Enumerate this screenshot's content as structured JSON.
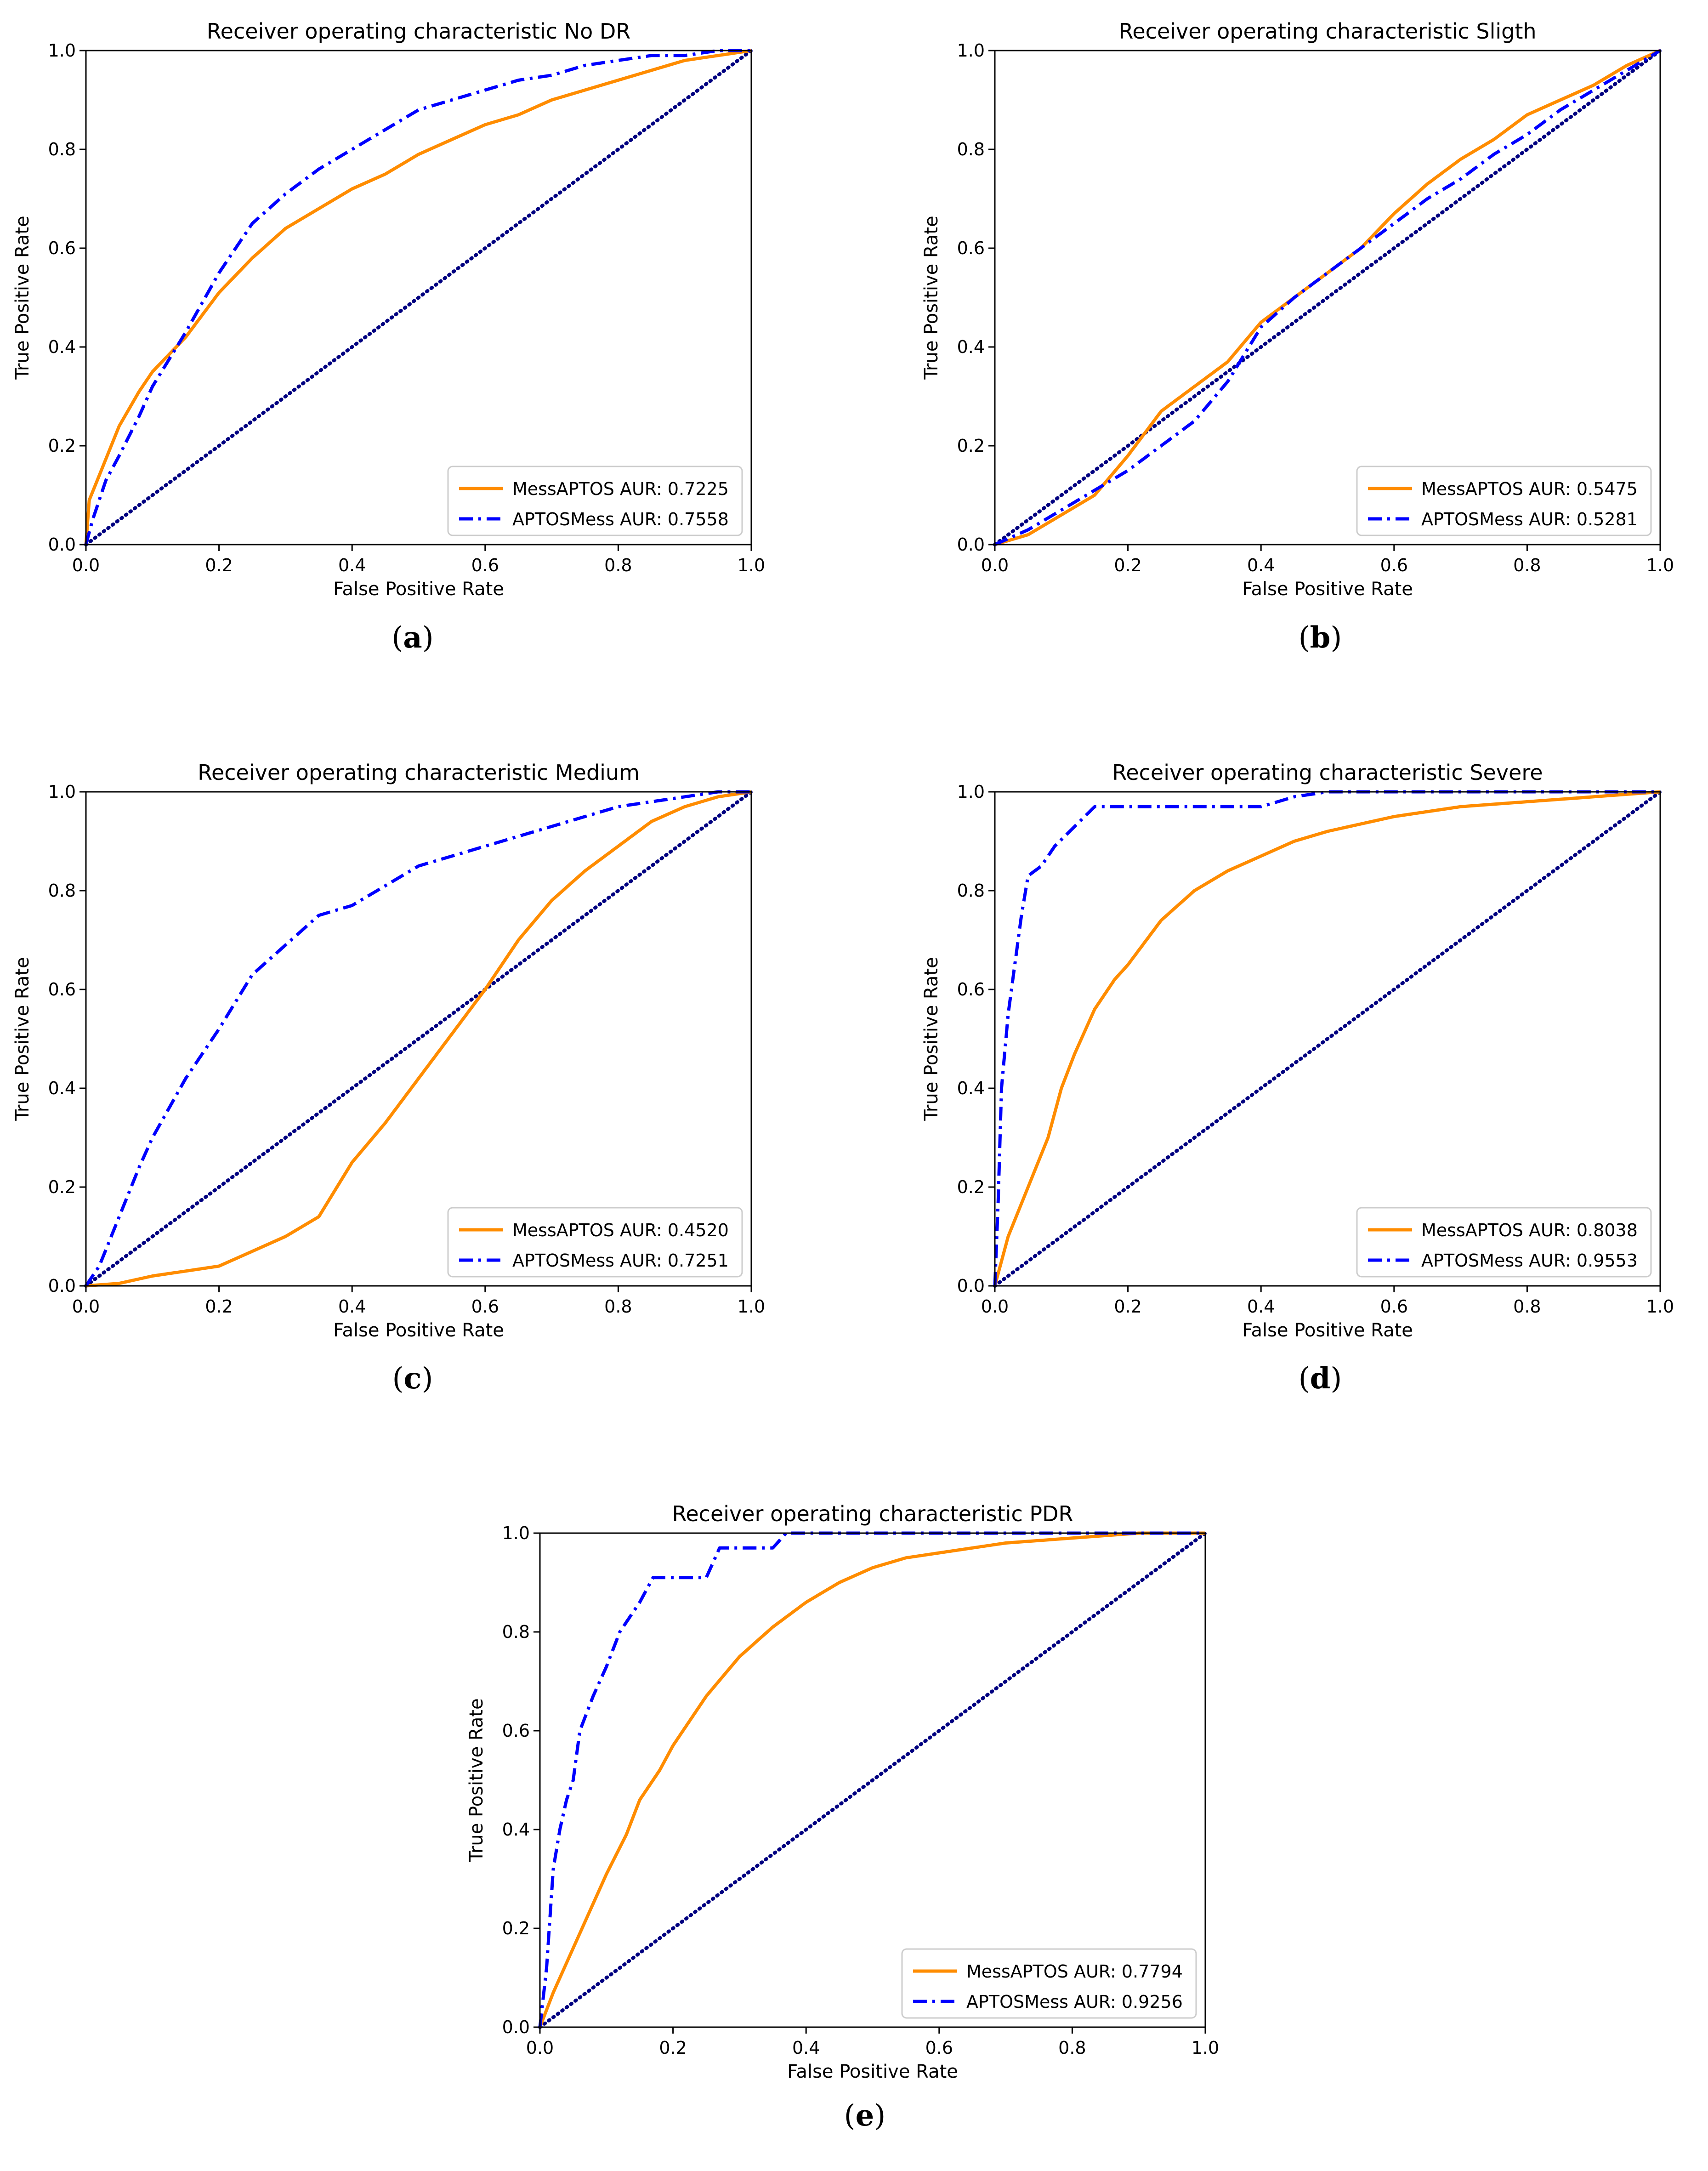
{
  "figure": {
    "captions": [
      "(a)",
      "(b)",
      "(c)",
      "(d)",
      "(e)"
    ],
    "caption_letters": [
      "a",
      "b",
      "c",
      "d",
      "e"
    ]
  },
  "style": {
    "mess_color": "#ff8c00",
    "aptos_color": "#0000ff",
    "diag_color": "#000080",
    "axis_color": "#000000"
  },
  "chart_data": [
    {
      "type": "line",
      "title": "Receiver operating characteristic No DR",
      "xlabel": "False Positive Rate",
      "ylabel": "True Positive Rate",
      "xlim": [
        0,
        1
      ],
      "ylim": [
        0,
        1
      ],
      "xticks": [
        "0.0",
        "0.2",
        "0.4",
        "0.6",
        "0.8",
        "1.0"
      ],
      "yticks": [
        "0.0",
        "0.2",
        "0.4",
        "0.6",
        "0.8",
        "1.0"
      ],
      "legend": "lower-right",
      "series": [
        {
          "name": "MessAPTOS AUR: 0.7225",
          "style": "solid",
          "x": [
            0,
            0.005,
            0.02,
            0.05,
            0.08,
            0.1,
            0.15,
            0.2,
            0.25,
            0.3,
            0.35,
            0.4,
            0.45,
            0.5,
            0.55,
            0.6,
            0.65,
            0.7,
            0.75,
            0.8,
            0.85,
            0.9,
            0.95,
            1.0
          ],
          "y": [
            0,
            0.09,
            0.14,
            0.24,
            0.31,
            0.35,
            0.42,
            0.51,
            0.58,
            0.64,
            0.68,
            0.72,
            0.75,
            0.79,
            0.82,
            0.85,
            0.87,
            0.9,
            0.92,
            0.94,
            0.96,
            0.98,
            0.99,
            1.0
          ]
        },
        {
          "name": "APTOSMess AUR: 0.7558",
          "style": "dashdot",
          "x": [
            0,
            0.01,
            0.03,
            0.05,
            0.08,
            0.1,
            0.15,
            0.2,
            0.25,
            0.3,
            0.35,
            0.4,
            0.45,
            0.5,
            0.55,
            0.6,
            0.65,
            0.7,
            0.75,
            0.8,
            0.85,
            0.9,
            0.95,
            1.0
          ],
          "y": [
            0,
            0.05,
            0.13,
            0.18,
            0.26,
            0.32,
            0.43,
            0.55,
            0.65,
            0.71,
            0.76,
            0.8,
            0.84,
            0.88,
            0.9,
            0.92,
            0.94,
            0.95,
            0.97,
            0.98,
            0.99,
            0.99,
            1.0,
            1.0
          ]
        }
      ]
    },
    {
      "type": "line",
      "title": "Receiver operating characteristic Sligth",
      "xlabel": "False Positive Rate",
      "ylabel": "True Positive Rate",
      "xlim": [
        0,
        1
      ],
      "ylim": [
        0,
        1
      ],
      "xticks": [
        "0.0",
        "0.2",
        "0.4",
        "0.6",
        "0.8",
        "1.0"
      ],
      "yticks": [
        "0.0",
        "0.2",
        "0.4",
        "0.6",
        "0.8",
        "1.0"
      ],
      "legend": "lower-right",
      "series": [
        {
          "name": "MessAPTOS AUR: 0.5475",
          "style": "solid",
          "x": [
            0,
            0.05,
            0.1,
            0.15,
            0.2,
            0.25,
            0.3,
            0.35,
            0.4,
            0.45,
            0.5,
            0.55,
            0.6,
            0.65,
            0.7,
            0.75,
            0.8,
            0.85,
            0.9,
            0.95,
            1.0
          ],
          "y": [
            0,
            0.02,
            0.06,
            0.1,
            0.18,
            0.27,
            0.32,
            0.37,
            0.45,
            0.5,
            0.55,
            0.6,
            0.67,
            0.73,
            0.78,
            0.82,
            0.87,
            0.9,
            0.93,
            0.97,
            1.0
          ]
        },
        {
          "name": "APTOSMess AUR: 0.5281",
          "style": "dashdot",
          "x": [
            0,
            0.05,
            0.1,
            0.15,
            0.2,
            0.25,
            0.3,
            0.35,
            0.4,
            0.45,
            0.5,
            0.55,
            0.6,
            0.65,
            0.7,
            0.75,
            0.8,
            0.85,
            0.9,
            0.95,
            1.0
          ],
          "y": [
            0,
            0.03,
            0.07,
            0.11,
            0.15,
            0.2,
            0.25,
            0.33,
            0.44,
            0.5,
            0.55,
            0.6,
            0.65,
            0.7,
            0.74,
            0.79,
            0.83,
            0.88,
            0.92,
            0.96,
            1.0
          ]
        }
      ]
    },
    {
      "type": "line",
      "title": "Receiver operating characteristic Medium",
      "xlabel": "False Positive Rate",
      "ylabel": "True Positive Rate",
      "xlim": [
        0,
        1
      ],
      "ylim": [
        0,
        1
      ],
      "xticks": [
        "0.0",
        "0.2",
        "0.4",
        "0.6",
        "0.8",
        "1.0"
      ],
      "yticks": [
        "0.0",
        "0.2",
        "0.4",
        "0.6",
        "0.8",
        "1.0"
      ],
      "legend": "lower-right",
      "series": [
        {
          "name": "MessAPTOS AUR: 0.4520",
          "style": "solid",
          "x": [
            0,
            0.05,
            0.1,
            0.15,
            0.2,
            0.25,
            0.3,
            0.35,
            0.4,
            0.45,
            0.5,
            0.55,
            0.6,
            0.65,
            0.7,
            0.75,
            0.8,
            0.85,
            0.9,
            0.95,
            1.0
          ],
          "y": [
            0,
            0.005,
            0.02,
            0.03,
            0.04,
            0.07,
            0.1,
            0.14,
            0.25,
            0.33,
            0.42,
            0.51,
            0.6,
            0.7,
            0.78,
            0.84,
            0.89,
            0.94,
            0.97,
            0.99,
            1.0
          ]
        },
        {
          "name": "APTOSMess AUR: 0.7251",
          "style": "dashdot",
          "x": [
            0,
            0.02,
            0.05,
            0.08,
            0.1,
            0.15,
            0.2,
            0.25,
            0.3,
            0.35,
            0.4,
            0.45,
            0.5,
            0.55,
            0.6,
            0.65,
            0.7,
            0.75,
            0.8,
            0.85,
            0.9,
            0.95,
            1.0
          ],
          "y": [
            0,
            0.04,
            0.14,
            0.24,
            0.3,
            0.42,
            0.52,
            0.63,
            0.69,
            0.75,
            0.77,
            0.81,
            0.85,
            0.87,
            0.89,
            0.91,
            0.93,
            0.95,
            0.97,
            0.98,
            0.99,
            1.0,
            1.0
          ]
        }
      ]
    },
    {
      "type": "line",
      "title": "Receiver operating characteristic Severe",
      "xlabel": "False Positive Rate",
      "ylabel": "True Positive Rate",
      "xlim": [
        0,
        1
      ],
      "ylim": [
        0,
        1
      ],
      "xticks": [
        "0.0",
        "0.2",
        "0.4",
        "0.6",
        "0.8",
        "1.0"
      ],
      "yticks": [
        "0.0",
        "0.2",
        "0.4",
        "0.6",
        "0.8",
        "1.0"
      ],
      "legend": "lower-right",
      "series": [
        {
          "name": "MessAPTOS AUR: 0.8038",
          "style": "solid",
          "x": [
            0,
            0.02,
            0.05,
            0.08,
            0.1,
            0.12,
            0.15,
            0.18,
            0.2,
            0.25,
            0.3,
            0.35,
            0.4,
            0.45,
            0.5,
            0.6,
            0.7,
            0.8,
            0.9,
            1.0
          ],
          "y": [
            0,
            0.1,
            0.2,
            0.3,
            0.4,
            0.47,
            0.56,
            0.62,
            0.65,
            0.74,
            0.8,
            0.84,
            0.87,
            0.9,
            0.92,
            0.95,
            0.97,
            0.98,
            0.99,
            1.0
          ]
        },
        {
          "name": "APTOSMess AUR: 0.9553",
          "style": "dashdot",
          "x": [
            0,
            0.005,
            0.01,
            0.02,
            0.03,
            0.04,
            0.05,
            0.07,
            0.09,
            0.12,
            0.15,
            0.2,
            0.3,
            0.4,
            0.45,
            0.5,
            1.0
          ],
          "y": [
            0,
            0.17,
            0.4,
            0.55,
            0.65,
            0.75,
            0.83,
            0.85,
            0.89,
            0.93,
            0.97,
            0.97,
            0.97,
            0.97,
            0.99,
            1.0,
            1.0
          ]
        }
      ]
    },
    {
      "type": "line",
      "title": "Receiver operating characteristic PDR",
      "xlabel": "False Positive Rate",
      "ylabel": "True Positive Rate",
      "xlim": [
        0,
        1
      ],
      "ylim": [
        0,
        1
      ],
      "xticks": [
        "0.0",
        "0.2",
        "0.4",
        "0.6",
        "0.8",
        "1.0"
      ],
      "yticks": [
        "0.0",
        "0.2",
        "0.4",
        "0.6",
        "0.8",
        "1.0"
      ],
      "legend": "lower-right",
      "series": [
        {
          "name": "MessAPTOS AUR: 0.7794",
          "style": "solid",
          "x": [
            0,
            0.02,
            0.05,
            0.08,
            0.1,
            0.13,
            0.15,
            0.18,
            0.2,
            0.25,
            0.3,
            0.35,
            0.4,
            0.45,
            0.5,
            0.55,
            0.6,
            0.7,
            0.8,
            0.9,
            1.0
          ],
          "y": [
            0,
            0.07,
            0.16,
            0.25,
            0.31,
            0.39,
            0.46,
            0.52,
            0.57,
            0.67,
            0.75,
            0.81,
            0.86,
            0.9,
            0.93,
            0.95,
            0.96,
            0.98,
            0.99,
            1.0,
            1.0
          ]
        },
        {
          "name": "APTOSMess AUR: 0.9256",
          "style": "dashdot",
          "x": [
            0,
            0.01,
            0.02,
            0.03,
            0.04,
            0.05,
            0.06,
            0.08,
            0.1,
            0.12,
            0.15,
            0.17,
            0.2,
            0.25,
            0.27,
            0.35,
            0.37,
            0.5,
            1.0
          ],
          "y": [
            0,
            0.12,
            0.32,
            0.4,
            0.46,
            0.5,
            0.6,
            0.67,
            0.73,
            0.8,
            0.86,
            0.91,
            0.91,
            0.91,
            0.97,
            0.97,
            1.0,
            1.0,
            1.0
          ]
        }
      ]
    }
  ]
}
